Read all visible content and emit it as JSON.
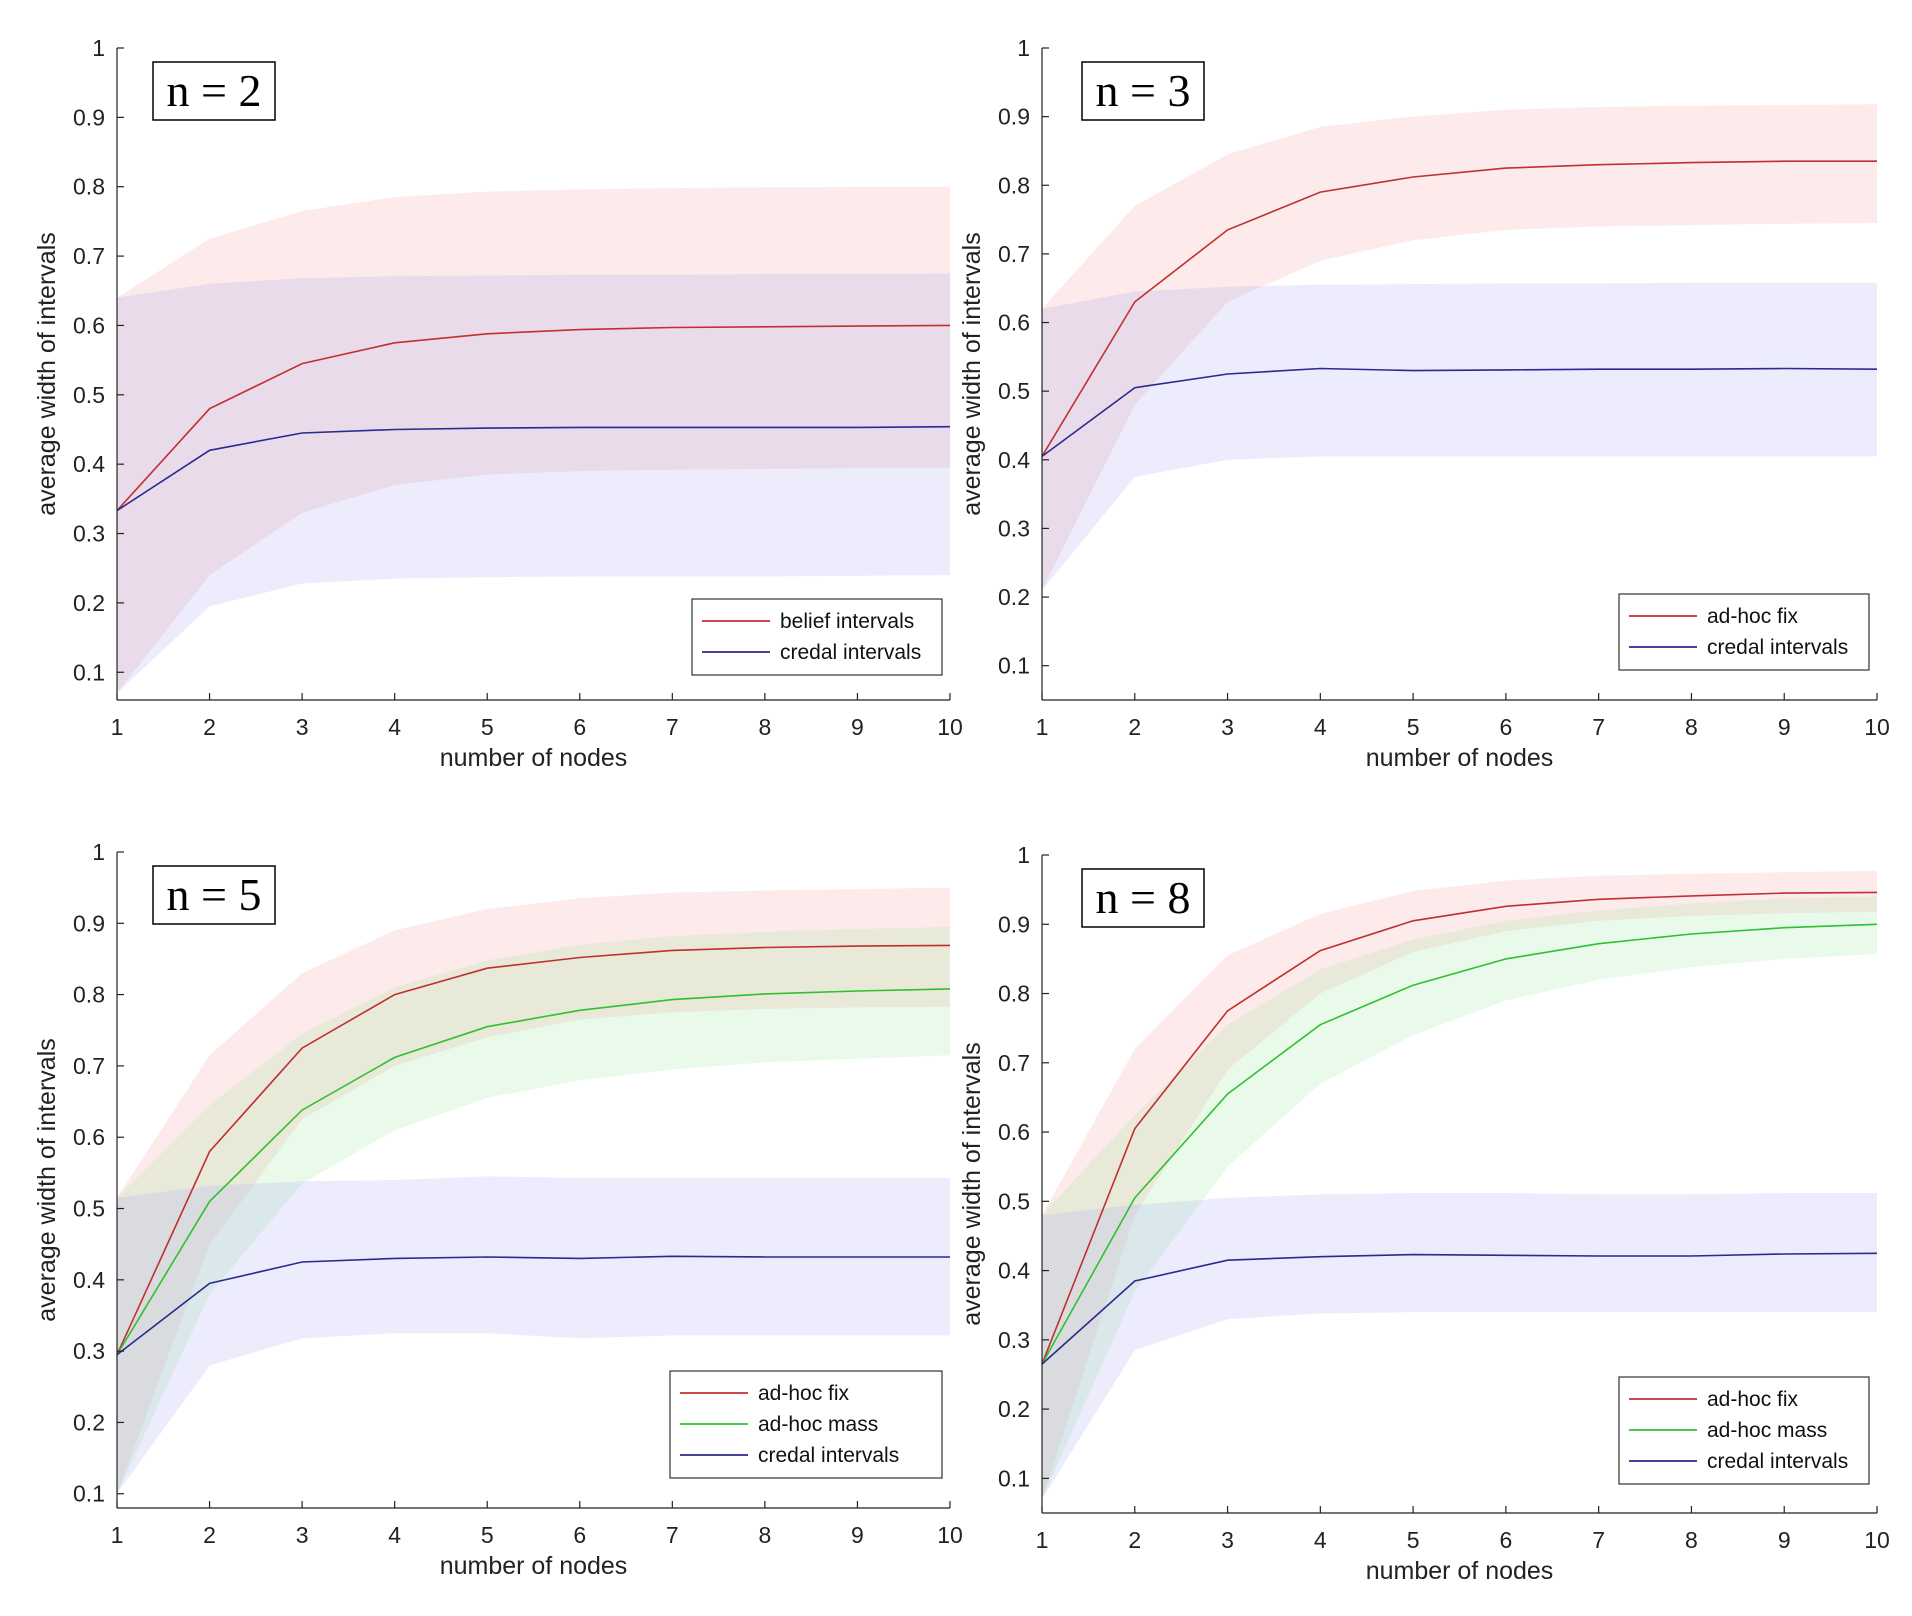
{
  "chart_data": [
    {
      "type": "line",
      "annotation": "n = 2",
      "xlabel": "number of nodes",
      "ylabel": "average width of intervals",
      "xlim": [
        1,
        10
      ],
      "ylim": [
        0.06,
        1
      ],
      "xticks": [
        "1",
        "2",
        "3",
        "4",
        "5",
        "6",
        "7",
        "8",
        "9",
        "10"
      ],
      "yticks": [
        "0.1",
        "0.2",
        "0.3",
        "0.4",
        "0.5",
        "0.6",
        "0.7",
        "0.8",
        "0.9",
        "1"
      ],
      "legend_position": "bottom-right",
      "x": [
        1,
        2,
        3,
        4,
        5,
        6,
        7,
        8,
        9,
        10
      ],
      "series": [
        {
          "name": "belief intervals",
          "color": "#c03030",
          "band_color": "#f4a0a0",
          "values": [
            0.333,
            0.48,
            0.545,
            0.575,
            0.588,
            0.594,
            0.597,
            0.598,
            0.599,
            0.6
          ],
          "lower": [
            0.07,
            0.24,
            0.33,
            0.37,
            0.385,
            0.39,
            0.392,
            0.393,
            0.394,
            0.395
          ],
          "upper": [
            0.64,
            0.725,
            0.765,
            0.785,
            0.793,
            0.796,
            0.798,
            0.799,
            0.8,
            0.8
          ]
        },
        {
          "name": "credal intervals",
          "color": "#2a2a90",
          "band_color": "#a8a8f0",
          "values": [
            0.333,
            0.42,
            0.445,
            0.45,
            0.452,
            0.453,
            0.453,
            0.453,
            0.453,
            0.454
          ],
          "lower": [
            0.07,
            0.195,
            0.228,
            0.235,
            0.237,
            0.238,
            0.238,
            0.238,
            0.239,
            0.24
          ],
          "upper": [
            0.64,
            0.66,
            0.668,
            0.671,
            0.672,
            0.673,
            0.673,
            0.674,
            0.674,
            0.675
          ]
        }
      ]
    },
    {
      "type": "line",
      "annotation": "n = 3",
      "xlabel": "number of nodes",
      "ylabel": "average width of intervals",
      "xlim": [
        1,
        10
      ],
      "ylim": [
        0.05,
        1
      ],
      "xticks": [
        "1",
        "2",
        "3",
        "4",
        "5",
        "6",
        "7",
        "8",
        "9",
        "10"
      ],
      "yticks": [
        "0.1",
        "0.2",
        "0.3",
        "0.4",
        "0.5",
        "0.6",
        "0.7",
        "0.8",
        "0.9",
        "1"
      ],
      "legend_position": "bottom-right",
      "x": [
        1,
        2,
        3,
        4,
        5,
        6,
        7,
        8,
        9,
        10
      ],
      "series": [
        {
          "name": "ad-hoc fix",
          "color": "#c03030",
          "band_color": "#f4a0a0",
          "values": [
            0.405,
            0.63,
            0.735,
            0.79,
            0.812,
            0.825,
            0.83,
            0.833,
            0.835,
            0.835
          ],
          "lower": [
            0.21,
            0.48,
            0.63,
            0.69,
            0.72,
            0.735,
            0.74,
            0.742,
            0.744,
            0.745
          ],
          "upper": [
            0.62,
            0.77,
            0.845,
            0.885,
            0.9,
            0.91,
            0.914,
            0.916,
            0.917,
            0.918
          ]
        },
        {
          "name": "credal intervals",
          "color": "#2a2a90",
          "band_color": "#a8a8f0",
          "values": [
            0.405,
            0.505,
            0.525,
            0.533,
            0.53,
            0.531,
            0.532,
            0.532,
            0.533,
            0.532
          ],
          "lower": [
            0.21,
            0.375,
            0.4,
            0.405,
            0.405,
            0.405,
            0.405,
            0.405,
            0.405,
            0.405
          ],
          "upper": [
            0.62,
            0.645,
            0.652,
            0.655,
            0.656,
            0.657,
            0.657,
            0.658,
            0.658,
            0.658
          ]
        }
      ]
    },
    {
      "type": "line",
      "annotation": "n = 5",
      "xlabel": "number of nodes",
      "ylabel": "average width of intervals",
      "xlim": [
        1,
        10
      ],
      "ylim": [
        0.08,
        1
      ],
      "xticks": [
        "1",
        "2",
        "3",
        "4",
        "5",
        "6",
        "7",
        "8",
        "9",
        "10"
      ],
      "yticks": [
        "0.1",
        "0.2",
        "0.3",
        "0.4",
        "0.5",
        "0.6",
        "0.7",
        "0.8",
        "0.9",
        "1"
      ],
      "legend_position": "bottom-right",
      "x": [
        1,
        2,
        3,
        4,
        5,
        6,
        7,
        8,
        9,
        10
      ],
      "series": [
        {
          "name": "ad-hoc fix",
          "color": "#c03030",
          "band_color": "#f4a0a0",
          "values": [
            0.295,
            0.58,
            0.725,
            0.8,
            0.837,
            0.852,
            0.862,
            0.866,
            0.868,
            0.869
          ],
          "lower": [
            0.1,
            0.45,
            0.625,
            0.7,
            0.74,
            0.765,
            0.775,
            0.78,
            0.782,
            0.783
          ],
          "upper": [
            0.515,
            0.715,
            0.83,
            0.89,
            0.92,
            0.935,
            0.943,
            0.946,
            0.948,
            0.95
          ]
        },
        {
          "name": "ad-hoc mass",
          "color": "#30c030",
          "band_color": "#a0e8a0",
          "values": [
            0.295,
            0.51,
            0.638,
            0.712,
            0.755,
            0.778,
            0.793,
            0.801,
            0.805,
            0.808
          ],
          "lower": [
            0.1,
            0.38,
            0.535,
            0.61,
            0.655,
            0.68,
            0.695,
            0.705,
            0.71,
            0.715
          ],
          "upper": [
            0.515,
            0.645,
            0.745,
            0.81,
            0.848,
            0.87,
            0.882,
            0.888,
            0.892,
            0.895
          ]
        },
        {
          "name": "credal intervals",
          "color": "#2a2a90",
          "band_color": "#a8a8f0",
          "values": [
            0.295,
            0.395,
            0.425,
            0.43,
            0.432,
            0.43,
            0.433,
            0.432,
            0.432,
            0.432
          ],
          "lower": [
            0.1,
            0.28,
            0.318,
            0.325,
            0.325,
            0.318,
            0.322,
            0.322,
            0.322,
            0.322
          ],
          "upper": [
            0.515,
            0.532,
            0.538,
            0.54,
            0.545,
            0.543,
            0.543,
            0.543,
            0.543,
            0.543
          ]
        }
      ]
    },
    {
      "type": "line",
      "annotation": "n = 8",
      "xlabel": "number of nodes",
      "ylabel": "average width of intervals",
      "xlim": [
        1,
        10
      ],
      "ylim": [
        0.05,
        1
      ],
      "xticks": [
        "1",
        "2",
        "3",
        "4",
        "5",
        "6",
        "7",
        "8",
        "9",
        "10"
      ],
      "yticks": [
        "0.1",
        "0.2",
        "0.3",
        "0.4",
        "0.5",
        "0.6",
        "0.7",
        "0.8",
        "0.9",
        "1"
      ],
      "legend_position": "bottom-right",
      "x": [
        1,
        2,
        3,
        4,
        5,
        6,
        7,
        8,
        9,
        10
      ],
      "series": [
        {
          "name": "ad-hoc fix",
          "color": "#c03030",
          "band_color": "#f4a0a0",
          "values": [
            0.265,
            0.605,
            0.775,
            0.862,
            0.905,
            0.926,
            0.936,
            0.941,
            0.945,
            0.946
          ],
          "lower": [
            0.07,
            0.48,
            0.69,
            0.8,
            0.86,
            0.89,
            0.905,
            0.912,
            0.916,
            0.918
          ],
          "upper": [
            0.48,
            0.72,
            0.855,
            0.915,
            0.948,
            0.963,
            0.97,
            0.973,
            0.975,
            0.977
          ]
        },
        {
          "name": "ad-hoc mass",
          "color": "#30c030",
          "band_color": "#a0e8a0",
          "values": [
            0.265,
            0.505,
            0.655,
            0.755,
            0.812,
            0.85,
            0.872,
            0.886,
            0.895,
            0.9
          ],
          "lower": [
            0.07,
            0.37,
            0.55,
            0.67,
            0.74,
            0.79,
            0.82,
            0.838,
            0.85,
            0.857
          ],
          "upper": [
            0.48,
            0.625,
            0.755,
            0.835,
            0.878,
            0.905,
            0.92,
            0.93,
            0.937,
            0.94
          ]
        },
        {
          "name": "credal intervals",
          "color": "#2a2a90",
          "band_color": "#a8a8f0",
          "values": [
            0.265,
            0.385,
            0.415,
            0.42,
            0.423,
            0.422,
            0.421,
            0.421,
            0.424,
            0.425
          ],
          "lower": [
            0.07,
            0.285,
            0.33,
            0.338,
            0.34,
            0.34,
            0.34,
            0.34,
            0.34,
            0.34
          ],
          "upper": [
            0.48,
            0.495,
            0.505,
            0.51,
            0.512,
            0.512,
            0.51,
            0.51,
            0.512,
            0.512
          ]
        }
      ]
    }
  ]
}
